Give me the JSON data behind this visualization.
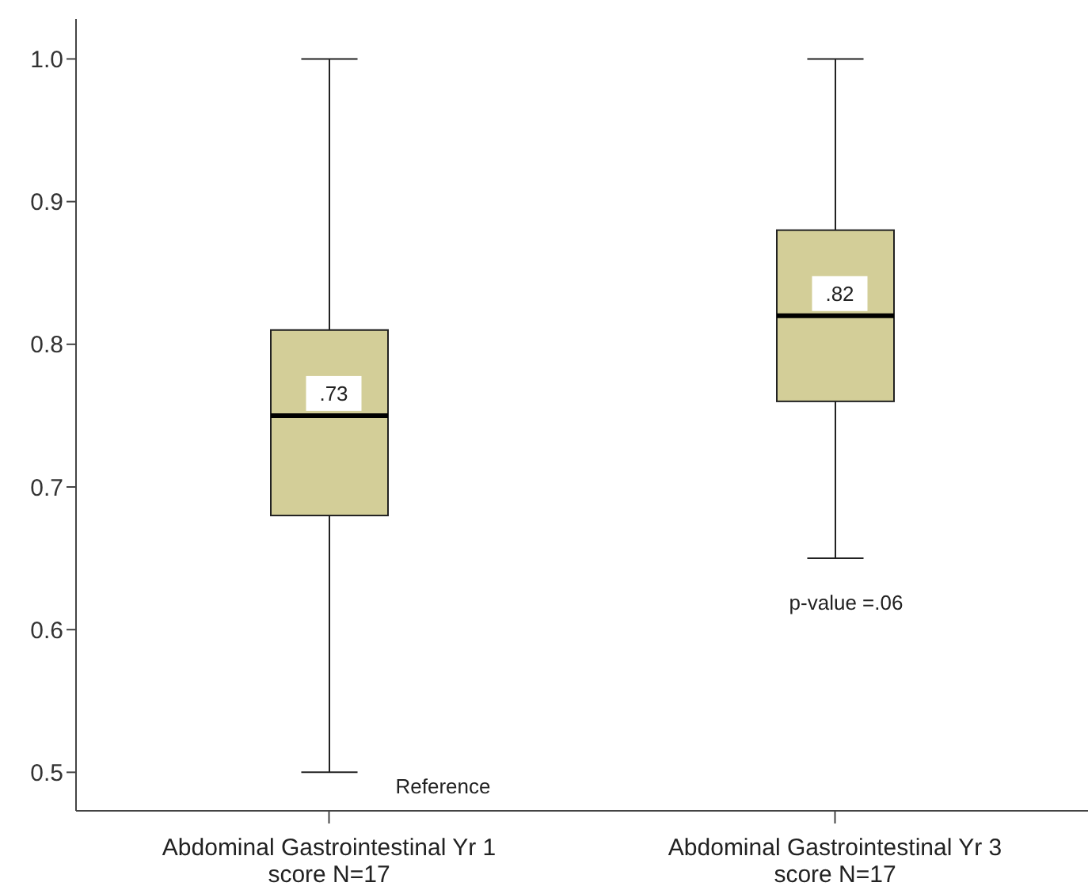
{
  "chart_data": {
    "type": "box",
    "categories": [
      "Abdominal Gastrointestinal Yr 1 score N=17",
      "Abdominal Gastrointestinal Yr 3 score N=17"
    ],
    "color": "#d3ce98",
    "boxes": [
      {
        "low": 0.5,
        "q1": 0.68,
        "median": 0.75,
        "q3": 0.81,
        "high": 1.0
      },
      {
        "low": 0.65,
        "q1": 0.76,
        "median": 0.82,
        "q3": 0.88,
        "high": 1.0
      }
    ],
    "ylim": [
      0.473,
      1.028
    ],
    "yticks": [
      0.5,
      0.6,
      0.7,
      0.8,
      0.9,
      {
        "value": 1,
        "label": "1.0"
      }
    ],
    "grid": false,
    "legend": false,
    "annotations": [
      ".73",
      ".82",
      "Reference",
      "p-value =.06"
    ]
  }
}
